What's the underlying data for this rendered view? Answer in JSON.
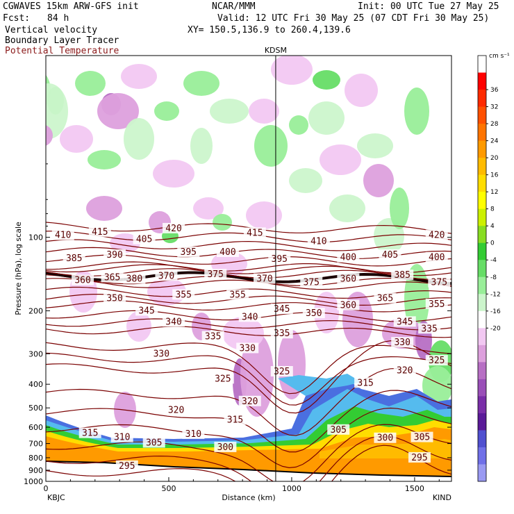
{
  "header": {
    "model": "CGWAVES 15km ARW-GFS init",
    "org": "NCAR/MMM",
    "init": "Init: 00 UTC Tue 27 May 25",
    "fcst_label": "Fcst:",
    "fcst_value": "84 h",
    "valid": "Valid: 12 UTC Fri 30 May 25 (07 CDT Fri 30 May 25)",
    "field1": "Vertical velocity",
    "field2": "Boundary Layer Tracer",
    "field3": "Potential Temperature",
    "xy": "XY= 150.5,136.9 to 260.4,139.6",
    "field3_color": "#8b1a1a"
  },
  "chart_data": {
    "type": "heatmap",
    "title": "Vertical velocity",
    "xlabel": "Distance (km)",
    "ylabel": "Pressure (hPa), log scale",
    "x_ticks": [
      0,
      500,
      1000,
      1500
    ],
    "x_range": [
      0,
      1650
    ],
    "y_ticks": [
      100,
      200,
      300,
      400,
      500,
      600,
      700,
      800,
      900,
      1000
    ],
    "y_scale": "log",
    "y_range": [
      1000,
      18
    ],
    "start_label": "KBJC",
    "end_label": "KIND",
    "marker_label": "KDSM",
    "marker_x": 935,
    "colorbar": {
      "unit": "cm s⁻¹",
      "ticks": [
        36,
        32,
        28,
        24,
        20,
        16,
        12,
        8,
        4,
        0,
        -4,
        -8,
        -12,
        -16,
        -20
      ],
      "colors": [
        "#ffffff",
        "#ff0000",
        "#ff2a00",
        "#ff5000",
        "#ff7400",
        "#ff9a00",
        "#ffbb00",
        "#ffdd00",
        "#ffff00",
        "#ccf000",
        "#88dd22",
        "#33cc33",
        "#66dd66",
        "#99ee99",
        "#ccf5cc",
        "#ffffff",
        "#f2c8f2",
        "#dda0dd",
        "#b76fc4",
        "#9a4fb8",
        "#7a2ea8",
        "#5a1a98",
        "#5050d0",
        "#7070e8",
        "#9a9af2"
      ]
    },
    "theta_isentropes": [
      295,
      300,
      305,
      310,
      315,
      320,
      325,
      330,
      335,
      340,
      345,
      350,
      355,
      360,
      365,
      370,
      375,
      380,
      385,
      390,
      395,
      400,
      405,
      410,
      415,
      420
    ],
    "theta_labels": [
      {
        "v": "410",
        "x": 70,
        "p": 98
      },
      {
        "v": "415",
        "x": 220,
        "p": 95
      },
      {
        "v": "420",
        "x": 520,
        "p": 92
      },
      {
        "v": "415",
        "x": 850,
        "p": 96
      },
      {
        "v": "420",
        "x": 1590,
        "p": 98
      },
      {
        "v": "405",
        "x": 400,
        "p": 102
      },
      {
        "v": "410",
        "x": 1110,
        "p": 104
      },
      {
        "v": "385",
        "x": 115,
        "p": 122
      },
      {
        "v": "390",
        "x": 280,
        "p": 118
      },
      {
        "v": "395",
        "x": 580,
        "p": 115
      },
      {
        "v": "400",
        "x": 740,
        "p": 115
      },
      {
        "v": "395",
        "x": 950,
        "p": 123
      },
      {
        "v": "400",
        "x": 1230,
        "p": 121
      },
      {
        "v": "405",
        "x": 1400,
        "p": 118
      },
      {
        "v": "400",
        "x": 1590,
        "p": 121
      },
      {
        "v": "360",
        "x": 150,
        "p": 150
      },
      {
        "v": "365",
        "x": 270,
        "p": 146
      },
      {
        "v": "380",
        "x": 360,
        "p": 148
      },
      {
        "v": "370",
        "x": 490,
        "p": 144
      },
      {
        "v": "375",
        "x": 690,
        "p": 142
      },
      {
        "v": "370",
        "x": 890,
        "p": 148
      },
      {
        "v": "375",
        "x": 1080,
        "p": 153
      },
      {
        "v": "360",
        "x": 1230,
        "p": 148
      },
      {
        "v": "385",
        "x": 1450,
        "p": 143
      },
      {
        "v": "375",
        "x": 1600,
        "p": 153
      },
      {
        "v": "350",
        "x": 280,
        "p": 178
      },
      {
        "v": "355",
        "x": 560,
        "p": 172
      },
      {
        "v": "355",
        "x": 780,
        "p": 172
      },
      {
        "v": "360",
        "x": 1230,
        "p": 190
      },
      {
        "v": "365",
        "x": 1380,
        "p": 178
      },
      {
        "v": "355",
        "x": 1590,
        "p": 188
      },
      {
        "v": "345",
        "x": 410,
        "p": 200
      },
      {
        "v": "345",
        "x": 960,
        "p": 197
      },
      {
        "v": "350",
        "x": 1090,
        "p": 205
      },
      {
        "v": "340",
        "x": 520,
        "p": 222
      },
      {
        "v": "340",
        "x": 830,
        "p": 212
      },
      {
        "v": "345",
        "x": 1460,
        "p": 222
      },
      {
        "v": "335",
        "x": 1560,
        "p": 237
      },
      {
        "v": "335",
        "x": 680,
        "p": 255
      },
      {
        "v": "335",
        "x": 960,
        "p": 248
      },
      {
        "v": "330",
        "x": 470,
        "p": 300
      },
      {
        "v": "330",
        "x": 820,
        "p": 285
      },
      {
        "v": "330",
        "x": 1450,
        "p": 270
      },
      {
        "v": "325",
        "x": 1590,
        "p": 320
      },
      {
        "v": "325",
        "x": 720,
        "p": 380
      },
      {
        "v": "325",
        "x": 960,
        "p": 355
      },
      {
        "v": "320",
        "x": 1460,
        "p": 352
      },
      {
        "v": "315",
        "x": 1300,
        "p": 395
      },
      {
        "v": "320",
        "x": 830,
        "p": 470
      },
      {
        "v": "320",
        "x": 530,
        "p": 510
      },
      {
        "v": "315",
        "x": 770,
        "p": 560
      },
      {
        "v": "315",
        "x": 180,
        "p": 635
      },
      {
        "v": "310",
        "x": 310,
        "p": 660
      },
      {
        "v": "310",
        "x": 600,
        "p": 640
      },
      {
        "v": "305",
        "x": 440,
        "p": 695
      },
      {
        "v": "300",
        "x": 730,
        "p": 725
      },
      {
        "v": "305",
        "x": 1190,
        "p": 615
      },
      {
        "v": "300",
        "x": 1380,
        "p": 665
      },
      {
        "v": "305",
        "x": 1530,
        "p": 660
      },
      {
        "v": "295",
        "x": 330,
        "p": 865
      },
      {
        "v": "295",
        "x": 1520,
        "p": 800
      }
    ]
  }
}
